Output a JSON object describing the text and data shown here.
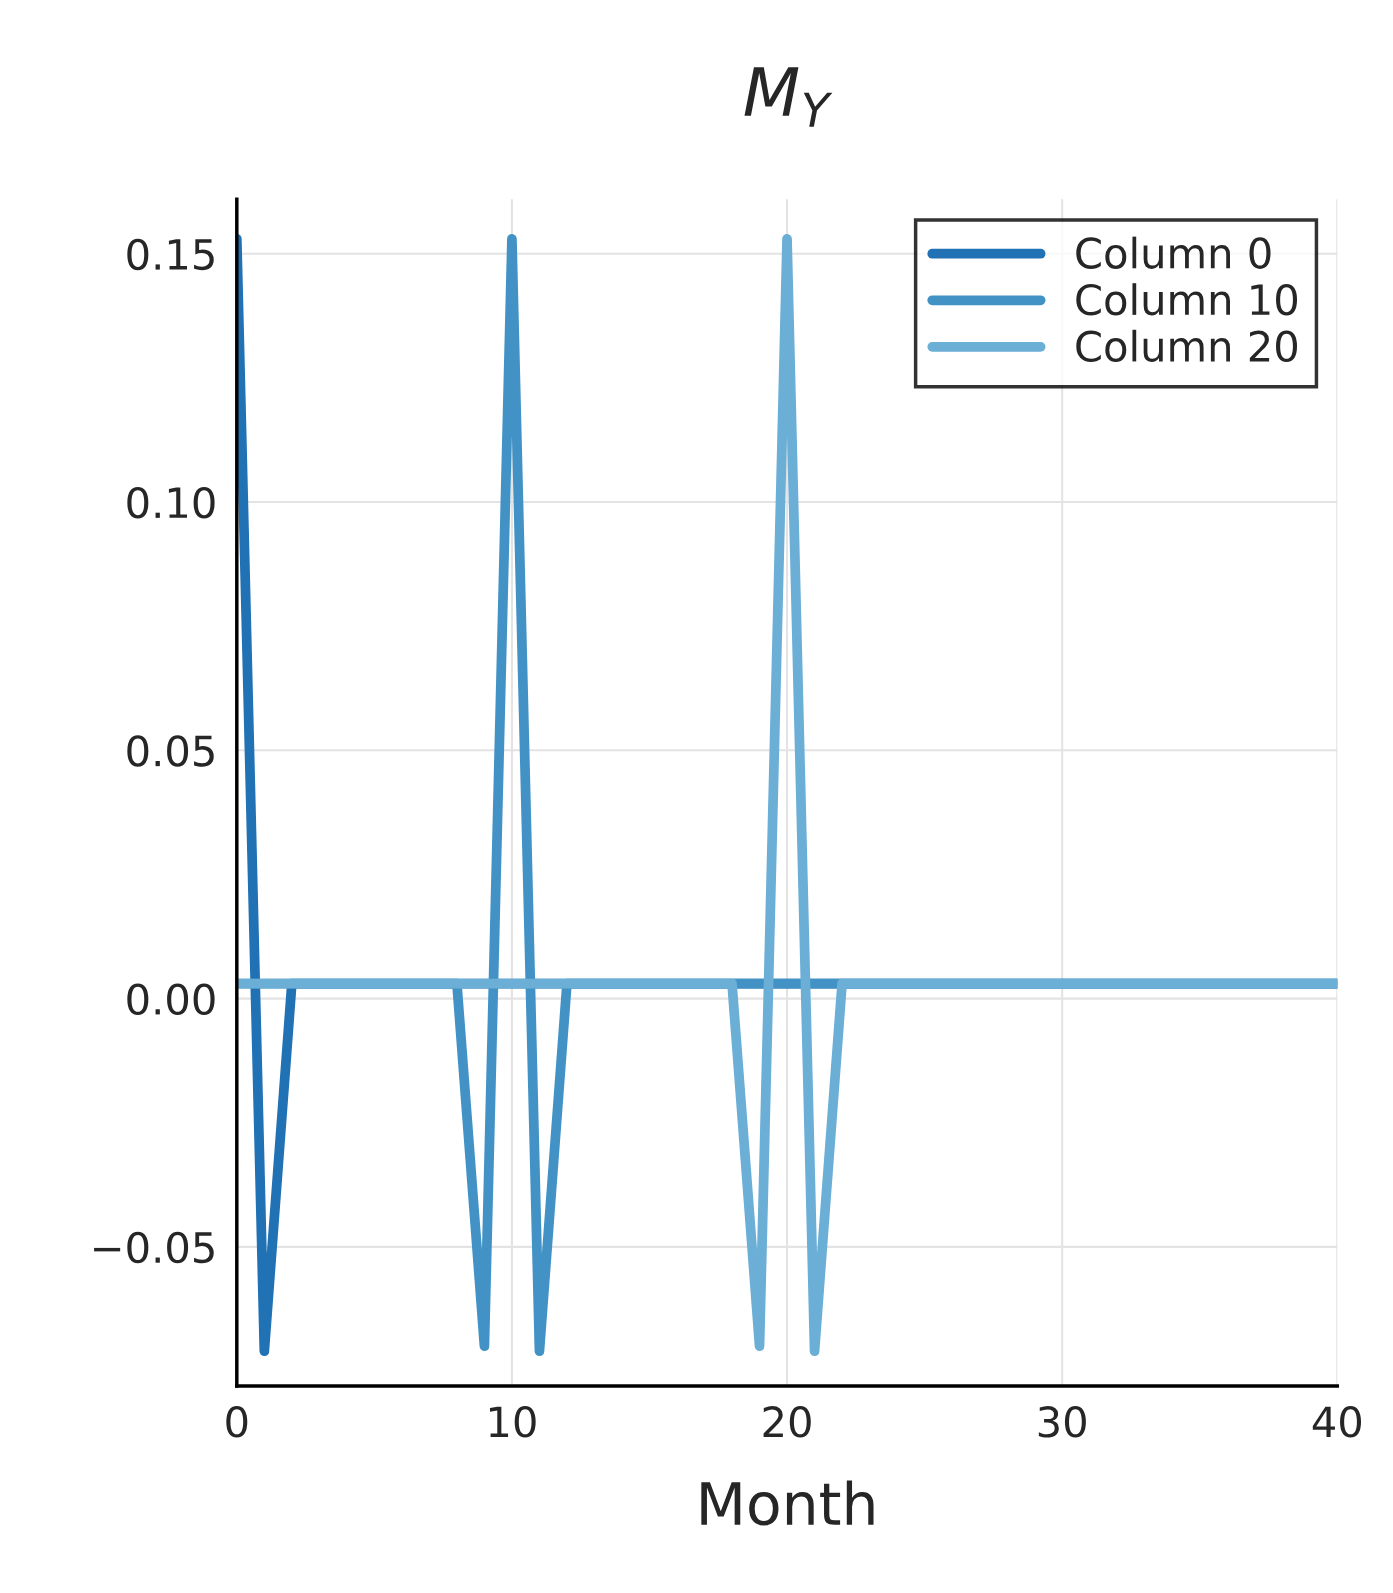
{
  "chart_data": {
    "type": "line",
    "title": "M$_{Y}$",
    "xlabel": "Month",
    "x": [
      0,
      1,
      2,
      3,
      4,
      5,
      6,
      7,
      8,
      9,
      10,
      11,
      12,
      13,
      14,
      15,
      16,
      17,
      18,
      19,
      20,
      21,
      22,
      23,
      24,
      25,
      26,
      27,
      28,
      29,
      30,
      31,
      32,
      33,
      34,
      35,
      36,
      37,
      38,
      39,
      40
    ],
    "series": [
      {
        "name": "Column 0",
        "color": "#2171b5",
        "values": [
          0.153,
          -0.071,
          0.003,
          0.003,
          0.003,
          0.003,
          0.003,
          0.003,
          0.003,
          0.003,
          0.003,
          0.003,
          0.003,
          0.003,
          0.003,
          0.003,
          0.003,
          0.003,
          0.003,
          0.003,
          0.003,
          0.003,
          0.003,
          0.003,
          0.003,
          0.003,
          0.003,
          0.003,
          0.003,
          0.003,
          0.003,
          0.003,
          0.003,
          0.003,
          0.003,
          0.003,
          0.003,
          0.003,
          0.003,
          0.003,
          0.003
        ]
      },
      {
        "name": "Column 10",
        "color": "#4292c6",
        "values": [
          0.003,
          0.003,
          0.003,
          0.003,
          0.003,
          0.003,
          0.003,
          0.003,
          0.003,
          -0.07,
          0.153,
          -0.071,
          0.003,
          0.003,
          0.003,
          0.003,
          0.003,
          0.003,
          0.003,
          0.003,
          0.003,
          0.003,
          0.003,
          0.003,
          0.003,
          0.003,
          0.003,
          0.003,
          0.003,
          0.003,
          0.003,
          0.003,
          0.003,
          0.003,
          0.003,
          0.003,
          0.003,
          0.003,
          0.003,
          0.003,
          0.003
        ]
      },
      {
        "name": "Column 20",
        "color": "#6baed6",
        "values": [
          0.003,
          0.003,
          0.003,
          0.003,
          0.003,
          0.003,
          0.003,
          0.003,
          0.003,
          0.003,
          0.003,
          0.003,
          0.003,
          0.003,
          0.003,
          0.003,
          0.003,
          0.003,
          0.003,
          -0.07,
          0.153,
          -0.071,
          0.003,
          0.003,
          0.003,
          0.003,
          0.003,
          0.003,
          0.003,
          0.003,
          0.003,
          0.003,
          0.003,
          0.003,
          0.003,
          0.003,
          0.003,
          0.003,
          0.003,
          0.003,
          0.003
        ]
      }
    ],
    "xlim": [
      0,
      40
    ],
    "xticks": [
      0,
      10,
      20,
      30,
      40
    ],
    "ylim": [
      -0.078,
      0.161
    ],
    "yticks": [
      {
        "value": -0.05,
        "label": "−0.05"
      },
      {
        "value": 0.0,
        "label": "0.00"
      },
      {
        "value": 0.05,
        "label": "0.05"
      },
      {
        "value": 0.1,
        "label": "0.10"
      },
      {
        "value": 0.15,
        "label": "0.15"
      }
    ],
    "grid": true,
    "legend": "top right",
    "line_style": "solid"
  }
}
